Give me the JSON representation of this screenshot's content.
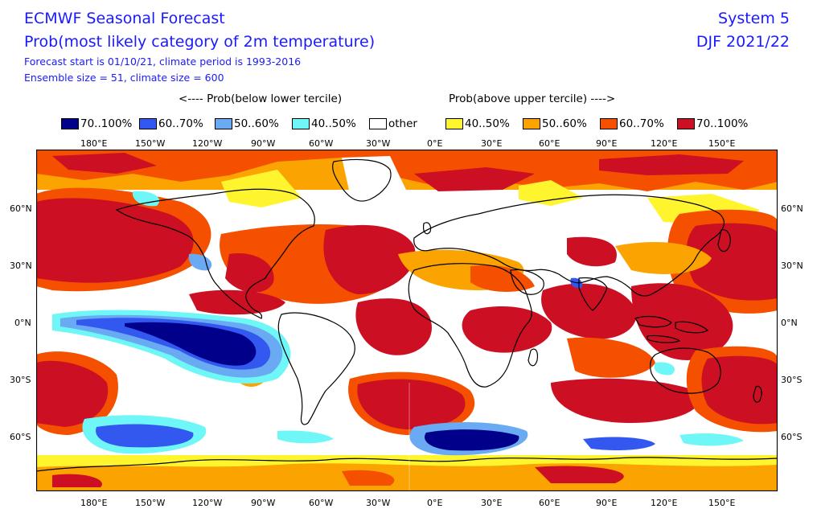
{
  "header": {
    "title": "ECMWF Seasonal Forecast",
    "subtitle": "Prob(most likely category of 2m temperature)",
    "forecast_info": "Forecast start is 01/10/21, climate period is 1993-2016",
    "ensemble_info": "Ensemble size = 51, climate size = 600",
    "system": "System 5",
    "season": "DJF 2021/22"
  },
  "legend": {
    "below_label": "<---- Prob(below lower tercile)",
    "above_label": "Prob(above upper tercile) ---->",
    "items": [
      {
        "label": "70..100%",
        "color": "#00008b"
      },
      {
        "label": "60..70%",
        "color": "#3258f0"
      },
      {
        "label": "50..60%",
        "color": "#6aaaf2"
      },
      {
        "label": "40..50%",
        "color": "#6ff7f7"
      },
      {
        "label": "other",
        "color": "#ffffff"
      },
      {
        "label": "40..50%",
        "color": "#fff52f"
      },
      {
        "label": "50..60%",
        "color": "#fba300"
      },
      {
        "label": "60..70%",
        "color": "#f54f00"
      },
      {
        "label": "70..100%",
        "color": "#cc0f23"
      }
    ]
  },
  "axes": {
    "x_ticks": [
      "180°E",
      "150°W",
      "120°W",
      "90°W",
      "60°W",
      "30°W",
      "0°E",
      "30°E",
      "60°E",
      "90°E",
      "120°E",
      "150°E"
    ],
    "y_ticks": [
      "60°N",
      "30°N",
      "0°N",
      "30°S",
      "60°S"
    ]
  }
}
